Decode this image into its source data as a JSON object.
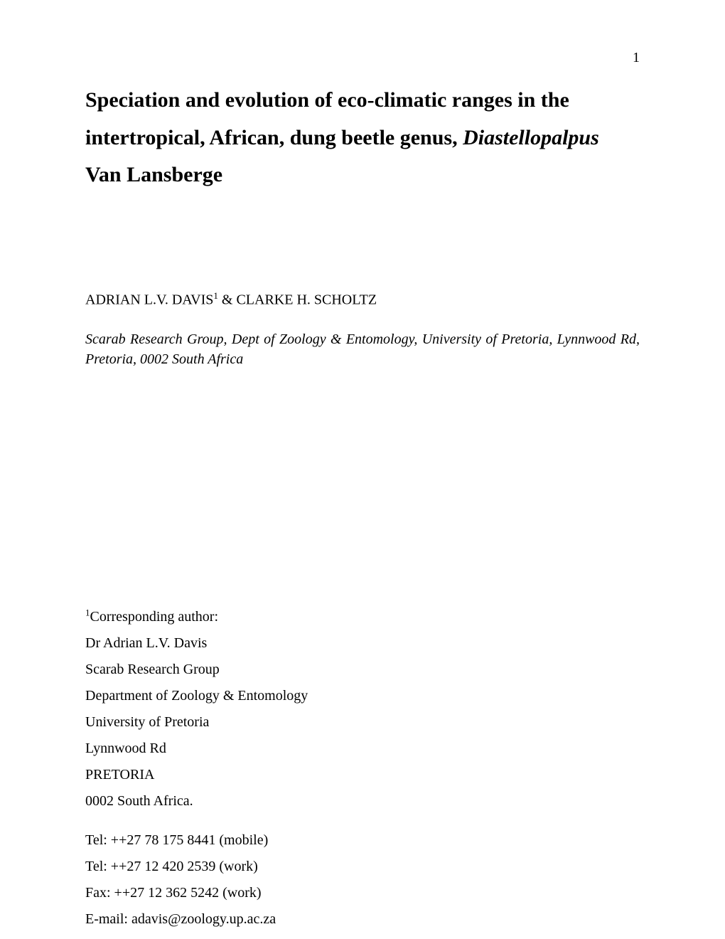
{
  "page": {
    "number": "1",
    "background_color": "#ffffff",
    "text_color": "#000000"
  },
  "title": {
    "part1": "Speciation and evolution of eco-climatic ranges in the intertropical, African, dung beetle genus, ",
    "italic": "Diastellopalpus",
    "part2": " Van Lansberge",
    "fontsize": 30,
    "fontweight": "bold"
  },
  "authors": {
    "author1": "ADRIAN L.V. DAVIS",
    "sup1": "1",
    "connector": " & ",
    "author2": "CLARKE H. SCHOLTZ",
    "fontsize": 20
  },
  "affiliation": {
    "text": "Scarab Research Group, Dept of Zoology & Entomology, University of Pretoria, Lynnwood Rd, Pretoria, 0002 South Africa",
    "fontsize": 20,
    "fontstyle": "italic"
  },
  "corresponding": {
    "sup": "1",
    "label": "Corresponding author:",
    "lines": [
      "Dr Adrian L.V. Davis",
      "Scarab Research Group",
      "Department of Zoology & Entomology",
      "University of Pretoria",
      "Lynnwood Rd",
      "PRETORIA",
      "0002 South Africa."
    ],
    "fontsize": 20
  },
  "contact": {
    "lines": [
      "Tel: ++27 78 175 8441 (mobile)",
      "Tel: ++27 12 420 2539 (work)",
      "Fax: ++27 12 362 5242 (work)",
      "E-mail: adavis@zoology.up.ac.za"
    ],
    "fontsize": 20
  }
}
